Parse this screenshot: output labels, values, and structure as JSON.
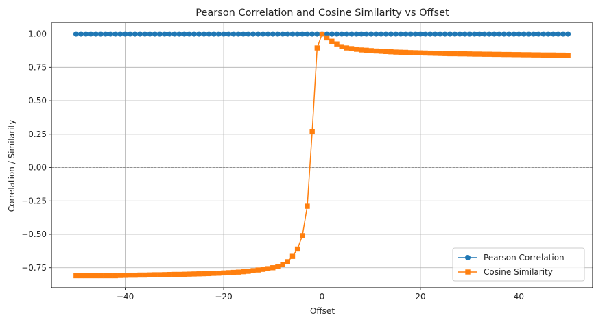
{
  "chart_data": {
    "type": "line",
    "title": "Pearson Correlation and Cosine Similarity vs Offset",
    "xlabel": "Offset",
    "ylabel": "Correlation / Similarity",
    "xlim": [
      -55,
      55
    ],
    "ylim": [
      -0.9,
      1.085
    ],
    "x_ticks": [
      -40,
      -20,
      0,
      20,
      40
    ],
    "x_tick_labels": [
      "−40",
      "−20",
      "0",
      "20",
      "40"
    ],
    "y_ticks": [
      -0.75,
      -0.5,
      -0.25,
      0.0,
      0.25,
      0.5,
      0.75,
      1.0
    ],
    "y_tick_labels": [
      "−0.75",
      "−0.50",
      "−0.25",
      "0.00",
      "0.25",
      "0.50",
      "0.75",
      "1.00"
    ],
    "grid": true,
    "reference_line": {
      "y": 0,
      "style": "dashed",
      "color": "#808080"
    },
    "legend": {
      "position": "lower-right",
      "entries": [
        {
          "name": "Pearson Correlation",
          "marker": "circle"
        },
        {
          "name": "Cosine Similarity",
          "marker": "square"
        }
      ]
    },
    "series": [
      {
        "name": "Pearson Correlation",
        "color": "#1f77b4",
        "marker": "circle",
        "x": [
          -50,
          -49,
          -48,
          -47,
          -46,
          -45,
          -44,
          -43,
          -42,
          -41,
          -40,
          -39,
          -38,
          -37,
          -36,
          -35,
          -34,
          -33,
          -32,
          -31,
          -30,
          -29,
          -28,
          -27,
          -26,
          -25,
          -24,
          -23,
          -22,
          -21,
          -20,
          -19,
          -18,
          -17,
          -16,
          -15,
          -14,
          -13,
          -12,
          -11,
          -10,
          -9,
          -8,
          -7,
          -6,
          -5,
          -4,
          -3,
          -2,
          -1,
          0,
          1,
          2,
          3,
          4,
          5,
          6,
          7,
          8,
          9,
          10,
          11,
          12,
          13,
          14,
          15,
          16,
          17,
          18,
          19,
          20,
          21,
          22,
          23,
          24,
          25,
          26,
          27,
          28,
          29,
          30,
          31,
          32,
          33,
          34,
          35,
          36,
          37,
          38,
          39,
          40,
          41,
          42,
          43,
          44,
          45,
          46,
          47,
          48,
          49,
          50
        ],
        "y": [
          1,
          1,
          1,
          1,
          1,
          1,
          1,
          1,
          1,
          1,
          1,
          1,
          1,
          1,
          1,
          1,
          1,
          1,
          1,
          1,
          1,
          1,
          1,
          1,
          1,
          1,
          1,
          1,
          1,
          1,
          1,
          1,
          1,
          1,
          1,
          1,
          1,
          1,
          1,
          1,
          1,
          1,
          1,
          1,
          1,
          1,
          1,
          1,
          1,
          1,
          1,
          1,
          1,
          1,
          1,
          1,
          1,
          1,
          1,
          1,
          1,
          1,
          1,
          1,
          1,
          1,
          1,
          1,
          1,
          1,
          1,
          1,
          1,
          1,
          1,
          1,
          1,
          1,
          1,
          1,
          1,
          1,
          1,
          1,
          1,
          1,
          1,
          1,
          1,
          1,
          1,
          1,
          1,
          1,
          1,
          1,
          1,
          1,
          1,
          1,
          1
        ]
      },
      {
        "name": "Cosine Similarity",
        "color": "#ff7f0e",
        "marker": "square",
        "x": [
          -50,
          -49,
          -48,
          -47,
          -46,
          -45,
          -44,
          -43,
          -42,
          -41,
          -40,
          -39,
          -38,
          -37,
          -36,
          -35,
          -34,
          -33,
          -32,
          -31,
          -30,
          -29,
          -28,
          -27,
          -26,
          -25,
          -24,
          -23,
          -22,
          -21,
          -20,
          -19,
          -18,
          -17,
          -16,
          -15,
          -14,
          -13,
          -12,
          -11,
          -10,
          -9,
          -8,
          -7,
          -6,
          -5,
          -4,
          -3,
          -2,
          -1,
          0,
          1,
          2,
          3,
          4,
          5,
          6,
          7,
          8,
          9,
          10,
          11,
          12,
          13,
          14,
          15,
          16,
          17,
          18,
          19,
          20,
          21,
          22,
          23,
          24,
          25,
          26,
          27,
          28,
          29,
          30,
          31,
          32,
          33,
          34,
          35,
          36,
          37,
          38,
          39,
          40,
          41,
          42,
          43,
          44,
          45,
          46,
          47,
          48,
          49,
          50
        ],
        "y": [
          -0.81,
          -0.81,
          -0.81,
          -0.81,
          -0.81,
          -0.81,
          -0.81,
          -0.81,
          -0.81,
          -0.808,
          -0.807,
          -0.806,
          -0.806,
          -0.805,
          -0.805,
          -0.804,
          -0.803,
          -0.803,
          -0.802,
          -0.801,
          -0.8,
          -0.8,
          -0.799,
          -0.798,
          -0.797,
          -0.796,
          -0.795,
          -0.794,
          -0.792,
          -0.791,
          -0.789,
          -0.787,
          -0.785,
          -0.783,
          -0.78,
          -0.777,
          -0.772,
          -0.767,
          -0.762,
          -0.757,
          -0.75,
          -0.74,
          -0.725,
          -0.705,
          -0.665,
          -0.61,
          -0.51,
          -0.29,
          0.27,
          0.895,
          1.0,
          0.97,
          0.945,
          0.925,
          0.905,
          0.895,
          0.89,
          0.885,
          0.88,
          0.878,
          0.875,
          0.872,
          0.87,
          0.868,
          0.866,
          0.864,
          0.863,
          0.862,
          0.86,
          0.859,
          0.858,
          0.857,
          0.856,
          0.855,
          0.854,
          0.853,
          0.852,
          0.852,
          0.851,
          0.851,
          0.85,
          0.849,
          0.849,
          0.848,
          0.848,
          0.847,
          0.847,
          0.846,
          0.846,
          0.845,
          0.845,
          0.844,
          0.844,
          0.843,
          0.843,
          0.842,
          0.842,
          0.842,
          0.841,
          0.841,
          0.84
        ]
      }
    ]
  }
}
